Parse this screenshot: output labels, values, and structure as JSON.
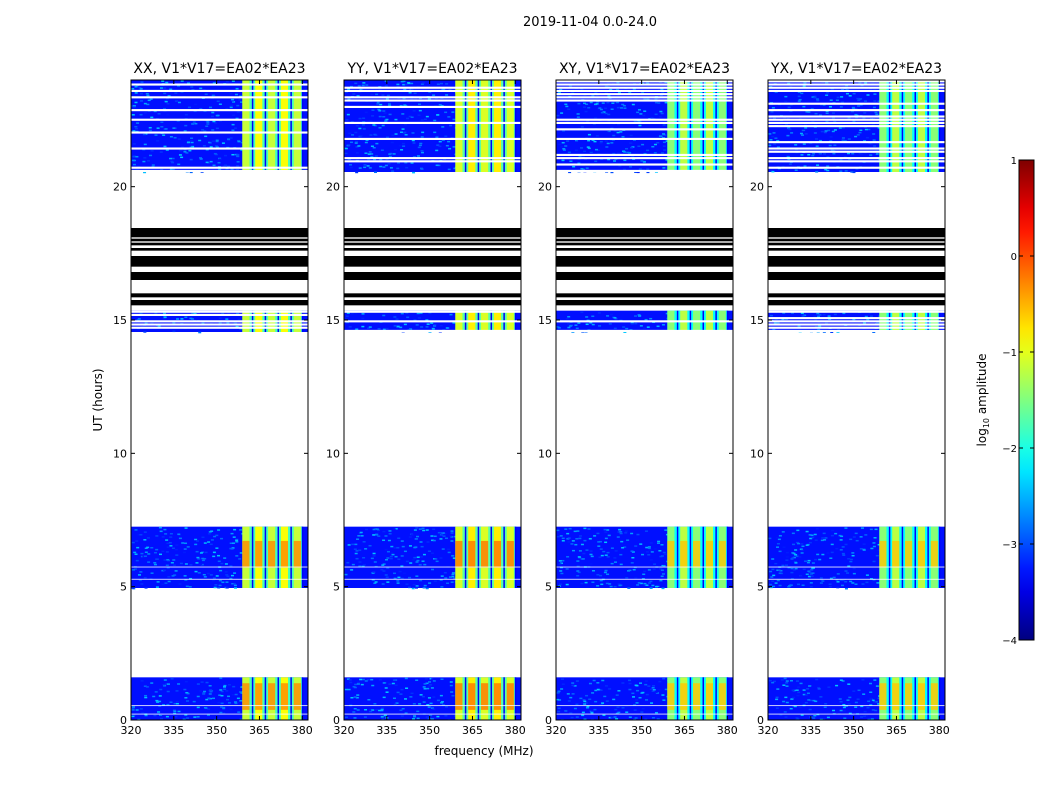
{
  "figure": {
    "suptitle": "2019-11-04 0.0-24.0",
    "xlabel": "frequency (MHz)",
    "ylabel": "UT (hours)"
  },
  "chart_data": {
    "type": "heatmap",
    "xlim": [
      320,
      382
    ],
    "ylim": [
      0,
      24
    ],
    "xticks": [
      "320",
      "335",
      "350",
      "365",
      "380"
    ],
    "xtick_values": [
      320,
      335,
      350,
      365,
      380
    ],
    "yticks": [
      "0",
      "5",
      "10",
      "15",
      "20"
    ],
    "ytick_values": [
      0,
      5,
      10,
      15,
      20
    ],
    "colorbar": {
      "label_prefix": "log",
      "label_sub": "10",
      "label_suffix": " amplitude",
      "range": [
        -4,
        1
      ],
      "ticks": [
        "1",
        "0",
        "−1",
        "−2",
        "−3",
        "−4"
      ],
      "tick_values": [
        1,
        0,
        -1,
        -2,
        -3,
        -4
      ],
      "colormap": "jet",
      "colors": [
        "#00007f",
        "#0000ff",
        "#0080ff",
        "#00ffff",
        "#80ff80",
        "#ffff00",
        "#ff8000",
        "#ff0000",
        "#7f0000"
      ]
    },
    "rfi_band_mhz": [
      359,
      380
    ],
    "rfi_strong_channels_mhz": [
      [
        359,
        361.5
      ],
      [
        363.5,
        366
      ],
      [
        368,
        370.5
      ],
      [
        372.5,
        375
      ],
      [
        377,
        379.5
      ]
    ],
    "data_segments_hours": [
      {
        "start": 0.0,
        "end": 1.6,
        "level": -3.0,
        "style": "dense"
      },
      {
        "start": 4.95,
        "end": 7.25,
        "level": -3.0,
        "style": "dense"
      },
      {
        "start": 14.55,
        "end": 15.35,
        "level": -3.0,
        "style": "striped"
      },
      {
        "start": 20.55,
        "end": 24.0,
        "level": -3.0,
        "style": "striped"
      }
    ],
    "flagged_black_bands_hours": [
      [
        15.55,
        15.75
      ],
      [
        15.85,
        16.0
      ],
      [
        16.5,
        16.8
      ],
      [
        17.0,
        17.4
      ],
      [
        17.6,
        17.7
      ],
      [
        17.8,
        17.9
      ],
      [
        17.95,
        18.05
      ],
      [
        18.1,
        18.45
      ]
    ],
    "panels": [
      {
        "title": "XX, V1*V17=EA02*EA23",
        "rfi_level": -1.0
      },
      {
        "title": "YY, V1*V17=EA02*EA23",
        "rfi_level": -0.9
      },
      {
        "title": "XY, V1*V17=EA02*EA23",
        "rfi_level": -1.3
      },
      {
        "title": "YX, V1*V17=EA02*EA23",
        "rfi_level": -1.3
      }
    ]
  }
}
